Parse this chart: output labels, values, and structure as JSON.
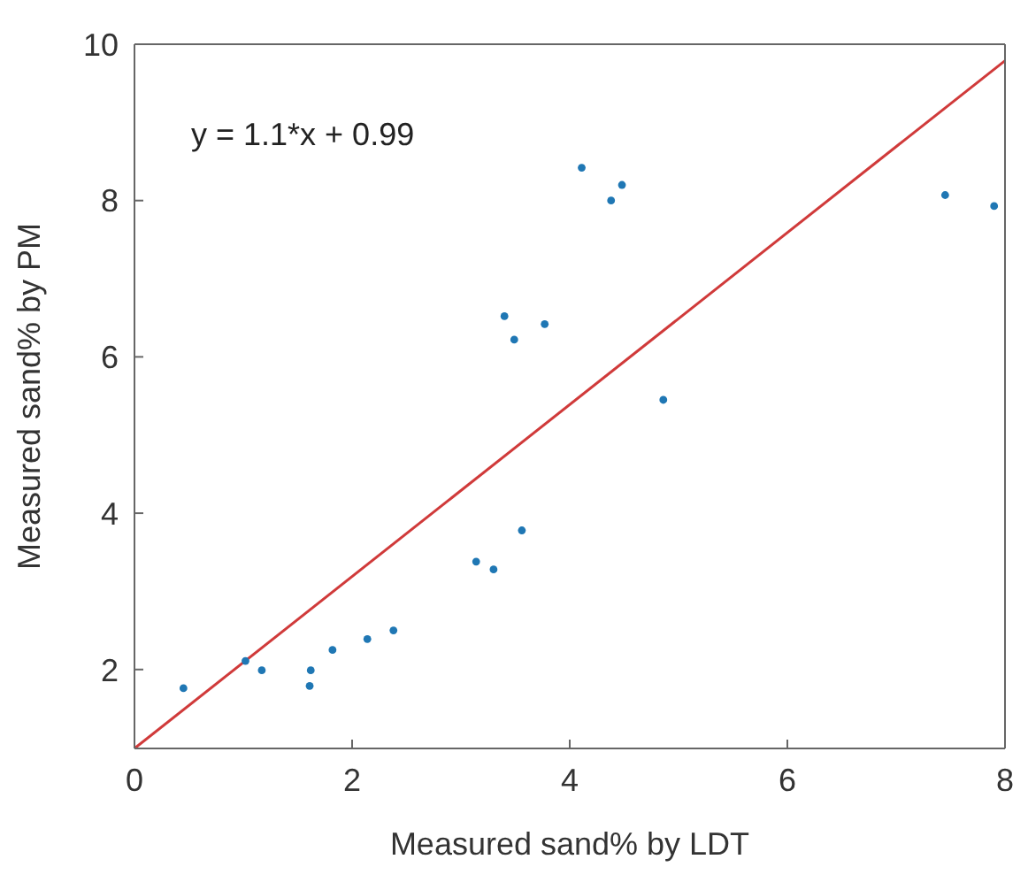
{
  "chart_data": {
    "type": "scatter",
    "xlabel": "Measured sand% by LDT",
    "ylabel": "Measured sand% by PM",
    "annotations": [
      "y = 1.1*x + 0.99"
    ],
    "series": [
      {
        "color": "#1f77b4",
        "marker": "circle",
        "x": [
          0.45,
          1.02,
          1.17,
          1.62,
          1.61,
          1.82,
          2.14,
          2.38,
          3.14,
          3.3,
          3.56,
          4.11,
          4.38,
          4.48,
          3.4,
          3.49,
          3.77,
          4.86,
          7.45,
          7.9
        ],
        "values": [
          1.76,
          2.11,
          1.99,
          1.99,
          1.79,
          2.25,
          2.39,
          2.5,
          3.38,
          3.28,
          3.78,
          8.42,
          8.0,
          8.2,
          6.52,
          6.22,
          6.42,
          5.45,
          8.07,
          7.93
        ]
      },
      {
        "type": "line",
        "color": "#d03a3a",
        "x": [
          0,
          8
        ],
        "values": [
          0.99,
          9.79
        ]
      }
    ],
    "xlim": [
      0,
      8
    ],
    "xticks": [
      0,
      2,
      4,
      6,
      8
    ],
    "ylim": [
      0.99,
      10
    ],
    "yticks": [
      2,
      4,
      6,
      8,
      10
    ],
    "grid": false,
    "legend": false
  }
}
